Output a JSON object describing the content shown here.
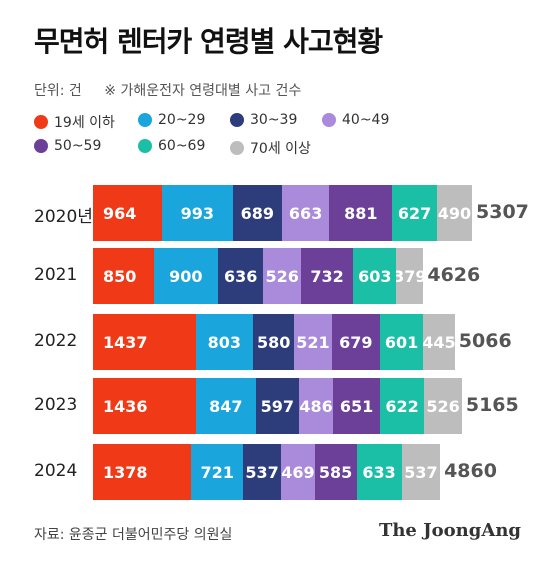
{
  "title": "무면허 렌터카 연령별 사고현황",
  "unit_label": "단위: 건",
  "note": "※ 가해운전자 연령대별 사고 건수",
  "source": "자료: 윤종군 더불어민주당 의원실",
  "brand": "The JoongAng",
  "chart_data": {
    "type": "bar",
    "orientation": "horizontal",
    "stacked": true,
    "categories": [
      "2020년",
      "2021",
      "2022",
      "2023",
      "2024"
    ],
    "series": [
      {
        "name": "19세 이하",
        "color": "#f03a17",
        "values": [
          964,
          850,
          1437,
          1436,
          1378
        ]
      },
      {
        "name": "20~29",
        "color": "#1aa6dc",
        "values": [
          993,
          900,
          803,
          847,
          721
        ]
      },
      {
        "name": "30~39",
        "color": "#2d3d7c",
        "values": [
          689,
          636,
          580,
          597,
          537
        ]
      },
      {
        "name": "40~49",
        "color": "#a98adb",
        "values": [
          663,
          526,
          521,
          486,
          469
        ]
      },
      {
        "name": "50~59",
        "color": "#6c3f99",
        "values": [
          881,
          732,
          679,
          651,
          585
        ]
      },
      {
        "name": "60~69",
        "color": "#1bbfa6",
        "values": [
          627,
          603,
          601,
          622,
          633
        ]
      },
      {
        "name": "70세 이상",
        "color": "#bdbdbd",
        "values": [
          490,
          379,
          445,
          526,
          537
        ]
      }
    ],
    "totals": [
      5307,
      4626,
      5066,
      5165,
      4860
    ]
  }
}
